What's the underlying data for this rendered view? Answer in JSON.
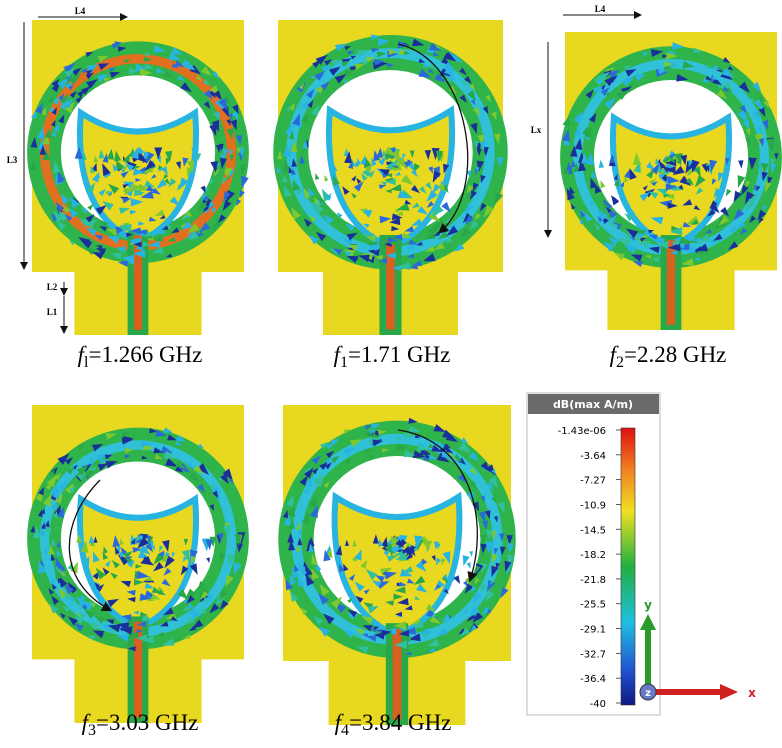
{
  "panels": [
    {
      "caption": {
        "symbol": "f",
        "subscript": "l",
        "value": "=1.266 GHz"
      },
      "dimensions": [
        "L4",
        "L3",
        "L2",
        "L1"
      ]
    },
    {
      "caption": {
        "symbol": "f",
        "subscript": "1",
        "value": "=1.71 GHz"
      }
    },
    {
      "caption": {
        "symbol": "f",
        "subscript": "2",
        "value": "=2.28 GHz"
      },
      "dimensions": [
        "L4",
        "Lx"
      ]
    },
    {
      "caption": {
        "symbol": "f",
        "subscript": "3",
        "value": "=3.03 GHz"
      }
    },
    {
      "caption": {
        "symbol": "f",
        "subscript": "4",
        "value": "=3.84 GHz"
      }
    }
  ],
  "legend": {
    "title": "dB(max A/m)",
    "ticks": [
      "-1.43e-06",
      "-3.64",
      "-7.27",
      "-10.9",
      "-14.5",
      "-18.2",
      "-21.8",
      "-25.5",
      "-29.1",
      "-32.7",
      "-36.4",
      "-40"
    ]
  },
  "axes": {
    "y": "y",
    "x": "x",
    "z": "z"
  }
}
